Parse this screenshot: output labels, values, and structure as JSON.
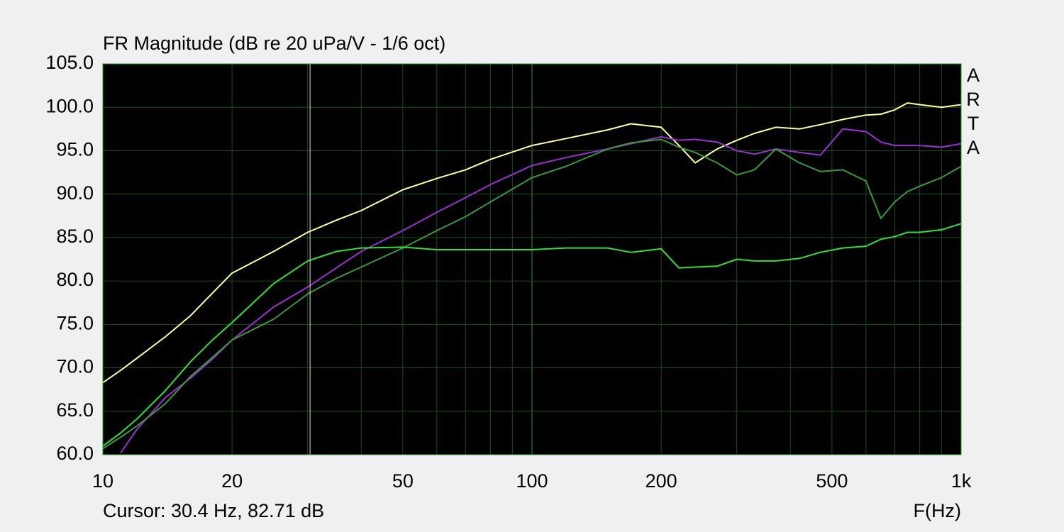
{
  "chart_data": {
    "type": "line",
    "title": "FR Magnitude (dB re 20 uPa/V - 1/6 oct)",
    "xlabel": "F(Hz)",
    "cursor_label": "Cursor: 30.4 Hz, 82.71 dB",
    "cursor_x": 30.4,
    "watermark": [
      "A",
      "R",
      "T",
      "A"
    ],
    "xscale": "log",
    "grid": true,
    "xlim": [
      10,
      1000
    ],
    "ylim": [
      60,
      105
    ],
    "xticks": [
      10,
      20,
      50,
      100,
      200,
      500,
      {
        "value": 1000,
        "label": "1k"
      }
    ],
    "xgrid": [
      10,
      20,
      30,
      40,
      50,
      60,
      70,
      80,
      90,
      100,
      200,
      300,
      400,
      500,
      600,
      700,
      800,
      900,
      1000
    ],
    "yticks": [
      {
        "value": 60,
        "label": "60.0"
      },
      {
        "value": 65,
        "label": "65.0"
      },
      {
        "value": 70,
        "label": "70.0"
      },
      {
        "value": 75,
        "label": "75.0"
      },
      {
        "value": 80,
        "label": "80.0"
      },
      {
        "value": 85,
        "label": "85.0"
      },
      {
        "value": 90,
        "label": "90.0"
      },
      {
        "value": 95,
        "label": "95.0"
      },
      {
        "value": 100,
        "label": "100.0"
      },
      {
        "value": 105,
        "label": "105.0"
      }
    ],
    "x": [
      10,
      11,
      12,
      14,
      16,
      18,
      20,
      25,
      30,
      35,
      40,
      50,
      60,
      70,
      80,
      100,
      120,
      150,
      170,
      200,
      220,
      240,
      270,
      300,
      330,
      370,
      420,
      470,
      530,
      600,
      650,
      700,
      750,
      800,
      900,
      1000
    ],
    "series": [
      {
        "color": "#ffff99",
        "values": [
          68.3,
          69.7,
          71.1,
          73.6,
          76.0,
          78.6,
          80.9,
          83.4,
          85.6,
          87.0,
          88.1,
          90.5,
          91.8,
          92.8,
          94.0,
          95.6,
          96.4,
          97.4,
          98.1,
          97.7,
          95.6,
          93.6,
          95.2,
          96.2,
          97.0,
          97.7,
          97.5,
          98.0,
          98.6,
          99.1,
          99.2,
          99.7,
          100.5,
          100.3,
          100.0,
          100.3
        ]
      },
      {
        "color": "#9b30d0",
        "values": [
          null,
          60.2,
          62.9,
          66.6,
          68.8,
          71.0,
          73.2,
          77.0,
          79.3,
          81.5,
          83.4,
          85.8,
          87.9,
          89.6,
          91.1,
          93.3,
          94.2,
          95.2,
          95.8,
          96.6,
          96.2,
          96.3,
          96.0,
          95.0,
          94.6,
          95.2,
          94.8,
          94.5,
          97.5,
          97.2,
          96.0,
          95.6,
          95.6,
          95.6,
          95.4,
          95.8
        ]
      },
      {
        "color": "#3a9a3a",
        "values": [
          60.7,
          62.0,
          63.3,
          65.9,
          69.0,
          71.2,
          73.2,
          75.6,
          78.5,
          80.3,
          81.6,
          83.8,
          85.8,
          87.4,
          89.1,
          91.9,
          93.2,
          95.2,
          95.9,
          96.3,
          95.4,
          94.8,
          93.6,
          92.2,
          92.8,
          95.2,
          93.6,
          92.6,
          92.8,
          91.5,
          87.2,
          89.1,
          90.3,
          90.9,
          91.9,
          93.2
        ]
      },
      {
        "color": "#33e033",
        "values": [
          61.0,
          62.5,
          64.1,
          67.4,
          70.7,
          73.2,
          75.2,
          79.7,
          82.3,
          83.4,
          83.8,
          83.9,
          83.6,
          83.6,
          83.6,
          83.6,
          83.8,
          83.8,
          83.3,
          83.7,
          81.5,
          81.6,
          81.7,
          82.5,
          82.3,
          82.3,
          82.6,
          83.3,
          83.8,
          84.0,
          84.8,
          85.1,
          85.6,
          85.6,
          85.9,
          86.6
        ]
      }
    ]
  }
}
